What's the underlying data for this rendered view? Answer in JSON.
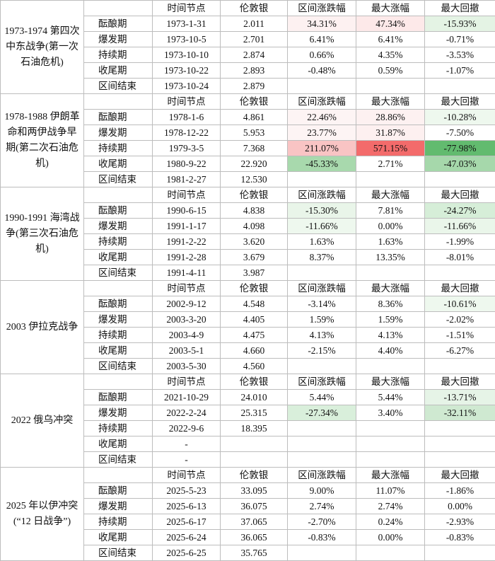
{
  "headers": [
    "时间节点",
    "伦敦银",
    "区间涨跌幅",
    "最大涨幅",
    "最大回撤"
  ],
  "groups": [
    {
      "event": "1973-1974 第四次中东战争(第一次石油危机)",
      "rows": [
        {
          "stage": "酝酿期",
          "date": "1973-1-31",
          "price": "2.011",
          "change": "34.31%",
          "max_gain": "47.34%",
          "max_dd": "-15.93%",
          "bg": [
            "#fdf1f1",
            "#fde9e9",
            "#e4f3e4"
          ]
        },
        {
          "stage": "爆发期",
          "date": "1973-10-5",
          "price": "2.701",
          "change": "6.41%",
          "max_gain": "6.41%",
          "max_dd": "-0.71%",
          "bg": [
            "",
            "",
            ""
          ]
        },
        {
          "stage": "持续期",
          "date": "1973-10-10",
          "price": "2.874",
          "change": "0.66%",
          "max_gain": "4.35%",
          "max_dd": "-3.53%",
          "bg": [
            "",
            "",
            ""
          ]
        },
        {
          "stage": "收尾期",
          "date": "1973-10-22",
          "price": "2.893",
          "change": "-0.48%",
          "max_gain": "0.59%",
          "max_dd": "-1.07%",
          "bg": [
            "",
            "",
            ""
          ]
        },
        {
          "stage": "区间结束",
          "date": "1973-10-24",
          "price": "2.879",
          "change": "",
          "max_gain": "",
          "max_dd": "",
          "bg": [
            "",
            "",
            ""
          ]
        }
      ]
    },
    {
      "event": "1978-1988 伊朗革命和两伊战争早期(第二次石油危机)",
      "rows": [
        {
          "stage": "酝酿期",
          "date": "1978-1-6",
          "price": "4.861",
          "change": "22.46%",
          "max_gain": "28.86%",
          "max_dd": "-10.28%",
          "bg": [
            "#fdf4f4",
            "#fdf1f1",
            "#eef8ee"
          ]
        },
        {
          "stage": "爆发期",
          "date": "1978-12-22",
          "price": "5.953",
          "change": "23.77%",
          "max_gain": "31.87%",
          "max_dd": "-7.50%",
          "bg": [
            "#fdf4f4",
            "#fdf0f0",
            ""
          ]
        },
        {
          "stage": "持续期",
          "date": "1979-3-5",
          "price": "7.368",
          "change": "211.07%",
          "max_gain": "571.15%",
          "max_dd": "-77.98%",
          "bg": [
            "#f9c4c4",
            "#f36b6b",
            "#62bb6f"
          ]
        },
        {
          "stage": "收尾期",
          "date": "1980-9-22",
          "price": "22.920",
          "change": "-45.33%",
          "max_gain": "2.71%",
          "max_dd": "-47.03%",
          "bg": [
            "#a8d9ad",
            "",
            "#a6d8ab"
          ]
        },
        {
          "stage": "区间结束",
          "date": "1981-2-27",
          "price": "12.530",
          "change": "",
          "max_gain": "",
          "max_dd": "",
          "bg": [
            "",
            "",
            ""
          ]
        }
      ]
    },
    {
      "event": "1990-1991 海湾战争(第三次石油危机)",
      "rows": [
        {
          "stage": "酝酿期",
          "date": "1990-6-15",
          "price": "4.838",
          "change": "-15.30%",
          "max_gain": "7.81%",
          "max_dd": "-24.27%",
          "bg": [
            "#e9f5e9",
            "",
            "#d6eed8"
          ]
        },
        {
          "stage": "爆发期",
          "date": "1991-1-17",
          "price": "4.098",
          "change": "-11.66%",
          "max_gain": "0.00%",
          "max_dd": "-11.66%",
          "bg": [
            "#eef8ee",
            "",
            "#eaf6ea"
          ]
        },
        {
          "stage": "持续期",
          "date": "1991-2-22",
          "price": "3.620",
          "change": "1.63%",
          "max_gain": "1.63%",
          "max_dd": "-1.99%",
          "bg": [
            "",
            "",
            ""
          ]
        },
        {
          "stage": "收尾期",
          "date": "1991-2-28",
          "price": "3.679",
          "change": "8.37%",
          "max_gain": "13.35%",
          "max_dd": "-8.01%",
          "bg": [
            "",
            "",
            ""
          ]
        },
        {
          "stage": "区间结束",
          "date": "1991-4-11",
          "price": "3.987",
          "change": "",
          "max_gain": "",
          "max_dd": "",
          "bg": [
            "",
            "",
            ""
          ]
        }
      ]
    },
    {
      "event": "2003 伊拉克战争",
      "rows": [
        {
          "stage": "酝酿期",
          "date": "2002-9-12",
          "price": "4.548",
          "change": "-3.14%",
          "max_gain": "8.36%",
          "max_dd": "-10.61%",
          "bg": [
            "",
            "",
            "#eef8ee"
          ]
        },
        {
          "stage": "爆发期",
          "date": "2003-3-20",
          "price": "4.405",
          "change": "1.59%",
          "max_gain": "1.59%",
          "max_dd": "-2.02%",
          "bg": [
            "",
            "",
            ""
          ]
        },
        {
          "stage": "持续期",
          "date": "2003-4-9",
          "price": "4.475",
          "change": "4.13%",
          "max_gain": "4.13%",
          "max_dd": "-1.51%",
          "bg": [
            "",
            "",
            ""
          ]
        },
        {
          "stage": "收尾期",
          "date": "2003-5-1",
          "price": "4.660",
          "change": "-2.15%",
          "max_gain": "4.40%",
          "max_dd": "-6.27%",
          "bg": [
            "",
            "",
            ""
          ]
        },
        {
          "stage": "区间结束",
          "date": "2003-5-30",
          "price": "4.560",
          "change": "",
          "max_gain": "",
          "max_dd": "",
          "bg": [
            "",
            "",
            ""
          ]
        }
      ]
    },
    {
      "event": "2022 俄乌冲突",
      "rows": [
        {
          "stage": "酝酿期",
          "date": "2021-10-29",
          "price": "24.010",
          "change": "5.44%",
          "max_gain": "5.44%",
          "max_dd": "-13.71%",
          "bg": [
            "",
            "",
            "#e6f4e7"
          ]
        },
        {
          "stage": "爆发期",
          "date": "2022-2-24",
          "price": "25.315",
          "change": "-27.34%",
          "max_gain": "3.40%",
          "max_dd": "-32.11%",
          "bg": [
            "#d9efdb",
            "",
            "#cfe9d1"
          ]
        },
        {
          "stage": "持续期",
          "date": "2022-9-6",
          "price": "18.395",
          "change": "",
          "max_gain": "",
          "max_dd": "",
          "bg": [
            "",
            "",
            ""
          ]
        },
        {
          "stage": "收尾期",
          "date": "-",
          "price": "",
          "change": "",
          "max_gain": "",
          "max_dd": "",
          "bg": [
            "",
            "",
            ""
          ]
        },
        {
          "stage": "区间结束",
          "date": "-",
          "price": "",
          "change": "",
          "max_gain": "",
          "max_dd": "",
          "bg": [
            "",
            "",
            ""
          ]
        }
      ]
    },
    {
      "event": "2025 年以伊冲突(“12 日战争”)",
      "rows": [
        {
          "stage": "酝酿期",
          "date": "2025-5-23",
          "price": "33.095",
          "change": "9.00%",
          "max_gain": "11.07%",
          "max_dd": "-1.86%",
          "bg": [
            "",
            "",
            ""
          ]
        },
        {
          "stage": "爆发期",
          "date": "2025-6-13",
          "price": "36.075",
          "change": "2.74%",
          "max_gain": "2.74%",
          "max_dd": "0.00%",
          "bg": [
            "",
            "",
            ""
          ]
        },
        {
          "stage": "持续期",
          "date": "2025-6-17",
          "price": "37.065",
          "change": "-2.70%",
          "max_gain": "0.24%",
          "max_dd": "-2.93%",
          "bg": [
            "",
            "",
            ""
          ]
        },
        {
          "stage": "收尾期",
          "date": "2025-6-24",
          "price": "36.065",
          "change": "-0.83%",
          "max_gain": "0.00%",
          "max_dd": "-0.83%",
          "bg": [
            "",
            "",
            ""
          ]
        },
        {
          "stage": "区间结束",
          "date": "2025-6-25",
          "price": "35.765",
          "change": "",
          "max_gain": "",
          "max_dd": "",
          "bg": [
            "",
            "",
            ""
          ]
        }
      ]
    }
  ]
}
